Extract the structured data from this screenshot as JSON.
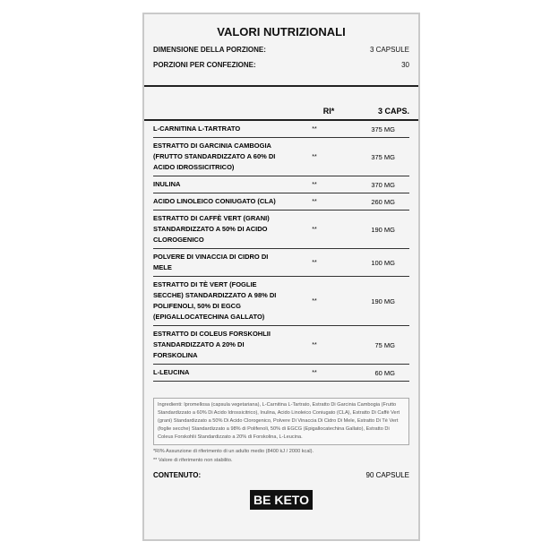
{
  "title": "VALORI NUTRIZIONALI",
  "serving_size": {
    "label": "DIMENSIONE DELLA PORZIONE:",
    "value": "3 CAPSULE"
  },
  "servings": {
    "label": "PORZIONI PER CONFEZIONE:",
    "value": "30"
  },
  "headers": {
    "ri": "RI*",
    "caps": "3 CAPS."
  },
  "rows": [
    {
      "name": "L-CARNITINA L-TARTRATO",
      "ri": "**",
      "value": "375 MG"
    },
    {
      "name": "ESTRATTO DI GARCINIA CAMBOGIA (FRUTTO STANDARDIZZATO A 60% DI ACIDO IDROSSICITRICO)",
      "ri": "**",
      "value": "375 MG"
    },
    {
      "name": "INULINA",
      "ri": "**",
      "value": "370 MG"
    },
    {
      "name": "ACIDO LINOLEICO CONIUGATO (CLA)",
      "ri": "**",
      "value": "260 MG"
    },
    {
      "name": "ESTRATTO DI CAFFÈ VERT (GRANI) STANDARDIZZATO A 50% DI ACIDO CLOROGENICO",
      "ri": "**",
      "value": "190 MG"
    },
    {
      "name": "POLVERE DI VINACCIA DI CIDRO DI MELE",
      "ri": "**",
      "value": "100 MG"
    },
    {
      "name": "ESTRATTO DI TÈ VERT (FOGLIE SECCHE) STANDARDIZZATO A 98% DI POLIFENOLI, 50% DI EGCG (EPIGALLOCATECHINA GALLATO)",
      "ri": "**",
      "value": "190 MG"
    },
    {
      "name": "ESTRATTO DI COLEUS FORSKOHLII STANDARDIZZATO A 20% DI FORSKOLINA",
      "ri": "**",
      "value": "75 MG"
    },
    {
      "name": "L-LEUCINA",
      "ri": "**",
      "value": "60 MG"
    }
  ],
  "ingredients": "Ingredienti: Ipromellosa (capsula vegetariana), L-Carnitina L-Tartrato, Estratto Di Garcinia Cambogia (Frutto Standardizzato a 60% Di Acido Idrossicitrico), Inulina, Acido Linoleico Coniugato (CLA), Estratto Di Caffè Vert (grani) Standardizzato a 50% Di Acido Clorogenico, Polvere Di Vinaccia Di Cidro Di Mele, Estratto Di Tè Vert (foglie secche) Standardizzato a 98% di Polifenoli, 50% di EGCG (Epigallocatechina Gallato), Estratto Di Coleus Forskohlii Standardizzato a 20% di Forskolina, L-Leucina.",
  "note1": "*RI% Assunzione di riferimento di un adulto medio (8400 kJ / 2000 kcal).",
  "note2": "** Valore di riferimento non stabilito.",
  "content": {
    "label": "CONTENUTO:",
    "value": "90 CAPSULE"
  },
  "logo": "BE KETO"
}
